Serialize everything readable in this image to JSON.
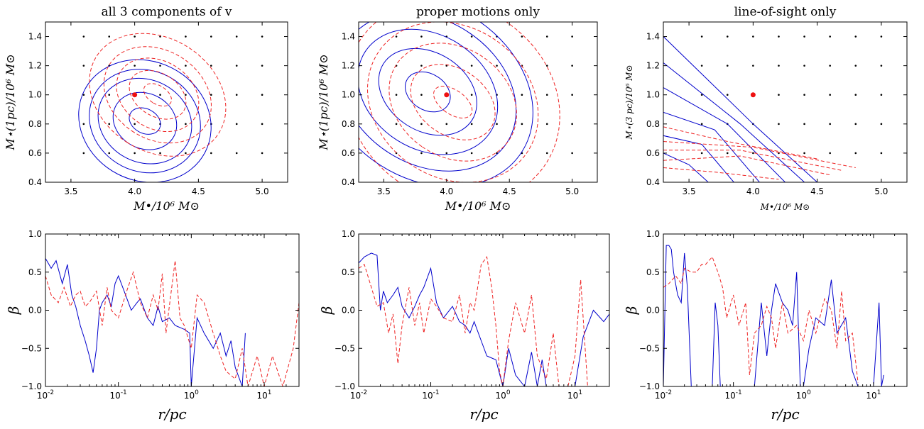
{
  "chart_data": [
    {
      "type": "contour",
      "title": "all 3 components of v",
      "xlabel": "M•/10⁶ M⊙",
      "ylabel": "M⋆(1pc)/10⁶ M⊙",
      "xlim": [
        3.3,
        5.2
      ],
      "ylim": [
        0.4,
        1.5
      ],
      "xticks": [
        "3.5",
        "4.0",
        "4.5",
        "5.0"
      ],
      "yticks": [
        "0.4",
        "0.6",
        "0.8",
        "1.0",
        "1.2",
        "1.4"
      ],
      "grid_points_x": [
        3.6,
        3.8,
        4.0,
        4.2,
        4.4,
        4.6,
        4.8,
        5.0
      ],
      "grid_points_y": [
        0.6,
        0.8,
        1.0,
        1.2,
        1.4
      ],
      "true_value": {
        "x": 4.0,
        "y": 1.0
      },
      "series": [
        {
          "style": "solid",
          "color": "#0000cc",
          "center": [
            4.08,
            0.82
          ],
          "radii": [
            [
              0.08,
              0.15
            ],
            [
              0.18,
              0.3
            ],
            [
              0.27,
              0.44
            ],
            [
              0.33,
              0.52
            ],
            [
              0.39,
              0.62
            ]
          ],
          "tilt": -0.45
        },
        {
          "style": "dashed",
          "color": "#ee2222",
          "center": [
            4.18,
            1.0
          ],
          "radii": [
            [
              0.06,
              0.14
            ],
            [
              0.14,
              0.28
            ],
            [
              0.22,
              0.4
            ],
            [
              0.29,
              0.52
            ],
            [
              0.37,
              0.66
            ]
          ],
          "tilt": -0.55
        }
      ]
    },
    {
      "type": "contour",
      "title": "proper motions only",
      "xlabel": "M•/10⁶ M⊙",
      "ylabel": "M⋆(1pc)/10⁶ M⊙",
      "xlim": [
        3.3,
        5.2
      ],
      "ylim": [
        0.4,
        1.5
      ],
      "xticks": [
        "3.5",
        "4.0",
        "4.5",
        "5.0"
      ],
      "yticks": [
        "0.4",
        "0.6",
        "0.8",
        "1.0",
        "1.2",
        "1.4"
      ],
      "grid_points_x": [
        3.6,
        3.8,
        4.0,
        4.2,
        4.4,
        4.6,
        4.8,
        5.0
      ],
      "grid_points_y": [
        0.6,
        0.8,
        1.0,
        1.2,
        1.4
      ],
      "true_value": {
        "x": 4.0,
        "y": 1.0
      },
      "series": [
        {
          "style": "solid",
          "color": "#0000cc",
          "center": [
            3.85,
            1.02
          ],
          "radii": [
            [
              0.12,
              0.22
            ],
            [
              0.26,
              0.48
            ],
            [
              0.38,
              0.68
            ],
            [
              0.48,
              0.86
            ],
            [
              0.58,
              1.02
            ]
          ],
          "tilt": -0.55
        },
        {
          "style": "dashed",
          "color": "#ee2222",
          "center": [
            4.05,
            0.95
          ],
          "radii": [
            [
              0.08,
              0.2
            ],
            [
              0.22,
              0.42
            ],
            [
              0.36,
              0.62
            ],
            [
              0.5,
              0.82
            ],
            [
              0.64,
              1.02
            ]
          ],
          "tilt": -0.6
        }
      ]
    },
    {
      "type": "contour",
      "title": "line-of-sight only",
      "xlabel": "M•/10⁶ M⊙",
      "ylabel": "M⋆(3 pc)/10⁶ M⊙",
      "xlim": [
        3.3,
        5.2
      ],
      "ylim": [
        0.4,
        1.5
      ],
      "xticks": [
        "3.5",
        "4.0",
        "4.5",
        "5.0"
      ],
      "yticks": [
        "0.4",
        "0.6",
        "0.8",
        "1.0",
        "1.2",
        "1.4"
      ],
      "grid_points_x": [
        3.6,
        3.8,
        4.0,
        4.2,
        4.4,
        4.6,
        4.8,
        5.0
      ],
      "grid_points_y": [
        0.6,
        0.8,
        1.0,
        1.2,
        1.4
      ],
      "true_value": {
        "x": 4.0,
        "y": 1.0
      },
      "series": [
        {
          "style": "solid",
          "color": "#0000cc",
          "lines": [
            [
              [
                3.3,
                1.4
              ],
              [
                4.0,
                0.8
              ],
              [
                4.5,
                0.4
              ]
            ],
            [
              [
                3.3,
                1.22
              ],
              [
                3.9,
                0.8
              ],
              [
                4.4,
                0.4
              ]
            ],
            [
              [
                3.3,
                1.05
              ],
              [
                3.8,
                0.8
              ],
              [
                4.25,
                0.4
              ]
            ],
            [
              [
                3.3,
                0.88
              ],
              [
                3.7,
                0.76
              ],
              [
                4.05,
                0.4
              ]
            ],
            [
              [
                3.3,
                0.72
              ],
              [
                3.6,
                0.66
              ],
              [
                3.85,
                0.4
              ]
            ],
            [
              [
                3.3,
                0.6
              ],
              [
                3.5,
                0.52
              ],
              [
                3.65,
                0.4
              ]
            ]
          ]
        },
        {
          "style": "dashed",
          "color": "#ee2222",
          "lines": [
            [
              [
                3.3,
                0.55
              ],
              [
                3.9,
                0.58
              ],
              [
                4.6,
                0.45
              ]
            ],
            [
              [
                3.3,
                0.62
              ],
              [
                3.9,
                0.62
              ],
              [
                4.7,
                0.48
              ]
            ],
            [
              [
                3.3,
                0.68
              ],
              [
                4.0,
                0.64
              ],
              [
                4.8,
                0.5
              ]
            ],
            [
              [
                3.3,
                0.78
              ],
              [
                3.8,
                0.68
              ],
              [
                4.5,
                0.56
              ]
            ],
            [
              [
                3.3,
                0.5
              ],
              [
                3.7,
                0.47
              ],
              [
                4.2,
                0.42
              ]
            ]
          ]
        }
      ]
    },
    {
      "type": "line",
      "xlabel": "r/pc",
      "ylabel": "β",
      "xscale": "log",
      "xlim": [
        0.01,
        30
      ],
      "ylim": [
        -1.0,
        1.0
      ],
      "yticks": [
        "−1.0",
        "−0.5",
        "0.0",
        "0.5",
        "1.0"
      ],
      "series": [
        {
          "style": "solid",
          "color": "#0000cc",
          "x": [
            0.01,
            0.012,
            0.014,
            0.017,
            0.02,
            0.023,
            0.026,
            0.03,
            0.035,
            0.04,
            0.045,
            0.05,
            0.055,
            0.06,
            0.07,
            0.08,
            0.09,
            0.1,
            0.12,
            0.15,
            0.18,
            0.2,
            0.25,
            0.3,
            0.35,
            0.4,
            0.5,
            0.6,
            0.8,
            0.95,
            1.0,
            1.2,
            1.5,
            2.0,
            2.5,
            3.0,
            3.5,
            4.0,
            5.0,
            5.5
          ],
          "y": [
            0.68,
            0.55,
            0.65,
            0.35,
            0.6,
            0.2,
            0.05,
            -0.2,
            -0.4,
            -0.6,
            -0.82,
            -0.5,
            0.0,
            0.1,
            0.2,
            0.05,
            0.35,
            0.45,
            0.25,
            0.0,
            0.1,
            0.15,
            -0.1,
            -0.2,
            0.05,
            -0.15,
            -0.1,
            -0.2,
            -0.25,
            -0.3,
            -1.0,
            -0.1,
            -0.3,
            -0.5,
            -0.3,
            -0.6,
            -0.4,
            -0.75,
            -1.0,
            -0.3
          ]
        },
        {
          "style": "dashed",
          "color": "#ee2222",
          "x": [
            0.01,
            0.012,
            0.015,
            0.018,
            0.022,
            0.026,
            0.03,
            0.035,
            0.04,
            0.05,
            0.06,
            0.07,
            0.08,
            0.1,
            0.13,
            0.16,
            0.2,
            0.25,
            0.3,
            0.35,
            0.4,
            0.45,
            0.5,
            0.6,
            0.7,
            0.8,
            1.0,
            1.2,
            1.5,
            2.0,
            2.5,
            3.0,
            4.0,
            5.0,
            6.0,
            8.0,
            10.0,
            13.0,
            18.0,
            25.0,
            30.0
          ],
          "y": [
            0.45,
            0.2,
            0.1,
            0.3,
            0.05,
            0.2,
            0.25,
            0.05,
            0.1,
            0.25,
            -0.2,
            0.3,
            0.0,
            -0.1,
            0.25,
            0.5,
            0.1,
            -0.1,
            0.2,
            0.0,
            0.48,
            -0.3,
            0.05,
            0.65,
            -0.1,
            -0.2,
            -0.5,
            0.2,
            0.1,
            -0.3,
            -0.6,
            -0.8,
            -0.9,
            -0.5,
            -1.0,
            -0.6,
            -1.0,
            -0.6,
            -1.0,
            -0.5,
            0.1
          ]
        }
      ]
    },
    {
      "type": "line",
      "xlabel": "r/pc",
      "ylabel": "β",
      "xscale": "log",
      "xlim": [
        0.01,
        30
      ],
      "ylim": [
        -1.0,
        1.0
      ],
      "yticks": [
        "−1.0",
        "−0.5",
        "0.0",
        "0.5",
        "1.0"
      ],
      "series": [
        {
          "style": "solid",
          "color": "#0000cc",
          "x": [
            0.01,
            0.012,
            0.015,
            0.018,
            0.02,
            0.022,
            0.025,
            0.03,
            0.035,
            0.04,
            0.05,
            0.06,
            0.07,
            0.08,
            0.1,
            0.12,
            0.15,
            0.2,
            0.25,
            0.3,
            0.35,
            0.4,
            0.5,
            0.6,
            0.8,
            1.0,
            1.2,
            1.5,
            2.0,
            2.5,
            3.0,
            3.5,
            4.0,
            5.0,
            6.0,
            8.0,
            10.0,
            13.0,
            18.0,
            25.0,
            30.0
          ],
          "y": [
            0.62,
            0.7,
            0.75,
            0.72,
            0.0,
            0.25,
            0.1,
            0.2,
            0.3,
            0.05,
            -0.1,
            0.05,
            0.2,
            0.3,
            0.55,
            0.1,
            -0.1,
            0.05,
            -0.15,
            -0.2,
            -0.3,
            -0.15,
            -0.4,
            -0.6,
            -0.65,
            -1.0,
            -0.5,
            -0.85,
            -1.0,
            -0.55,
            -1.0,
            -0.65,
            -1.0,
            -1.0,
            -1.0,
            -1.0,
            -1.0,
            -0.35,
            0.0,
            -0.15,
            -0.05
          ]
        },
        {
          "style": "dashed",
          "color": "#ee2222",
          "x": [
            0.01,
            0.012,
            0.015,
            0.018,
            0.022,
            0.026,
            0.03,
            0.035,
            0.04,
            0.05,
            0.06,
            0.07,
            0.08,
            0.1,
            0.12,
            0.15,
            0.2,
            0.25,
            0.3,
            0.35,
            0.4,
            0.5,
            0.6,
            0.7,
            0.8,
            0.9,
            1.0,
            1.2,
            1.5,
            2.0,
            2.5,
            3.0,
            4.0,
            5.0,
            6.0,
            8.0,
            10.0,
            12.0,
            15.0
          ],
          "y": [
            0.55,
            0.6,
            0.3,
            0.05,
            0.1,
            -0.3,
            -0.05,
            -0.7,
            -0.2,
            0.3,
            -0.2,
            0.1,
            -0.3,
            0.15,
            0.05,
            -0.1,
            -0.15,
            0.2,
            -0.3,
            0.1,
            0.0,
            0.6,
            0.7,
            0.3,
            -0.2,
            -0.8,
            -1.0,
            -0.4,
            0.1,
            -0.3,
            0.2,
            -0.6,
            -0.9,
            -0.3,
            -1.0,
            -1.0,
            -0.6,
            0.4,
            -1.0
          ]
        }
      ]
    },
    {
      "type": "line",
      "xlabel": "r/pc",
      "ylabel": "β",
      "xscale": "log",
      "xlim": [
        0.01,
        30
      ],
      "ylim": [
        -1.0,
        1.0
      ],
      "yticks": [
        "−1.0",
        "−0.5",
        "0.0",
        "0.5",
        "1.0"
      ],
      "series": [
        {
          "style": "solid",
          "color": "#0000cc",
          "x": [
            0.01,
            0.011,
            0.012,
            0.013,
            0.014,
            0.016,
            0.018,
            0.02,
            0.022,
            0.025,
            0.03,
            0.04,
            0.05,
            0.055,
            0.06,
            0.065,
            0.07,
            0.1,
            0.15,
            0.2,
            0.25,
            0.3,
            0.35,
            0.4,
            0.5,
            0.6,
            0.7,
            0.8,
            0.9,
            1.0,
            1.2,
            1.5,
            2.0,
            2.5,
            3.0,
            4.0,
            5.0,
            6.0,
            8.0,
            10.0,
            12.0,
            13.0,
            14.0
          ],
          "y": [
            -1.0,
            0.85,
            0.85,
            0.8,
            0.5,
            0.2,
            0.1,
            0.75,
            0.3,
            -1.0,
            -1.0,
            -1.0,
            -1.0,
            0.1,
            -0.2,
            -1.0,
            -1.0,
            -1.0,
            -1.0,
            -1.0,
            0.1,
            -0.6,
            0.0,
            0.35,
            0.1,
            0.0,
            -0.2,
            0.5,
            -1.0,
            -1.0,
            -0.5,
            -0.1,
            -0.2,
            0.4,
            -0.3,
            -0.1,
            -0.8,
            -1.0,
            -1.0,
            -1.0,
            0.1,
            -1.0,
            -0.85
          ]
        },
        {
          "style": "dashed",
          "color": "#ee2222",
          "x": [
            0.01,
            0.012,
            0.015,
            0.018,
            0.02,
            0.025,
            0.03,
            0.035,
            0.04,
            0.05,
            0.06,
            0.07,
            0.08,
            0.1,
            0.12,
            0.15,
            0.17,
            0.2,
            0.25,
            0.3,
            0.35,
            0.4,
            0.5,
            0.6,
            0.8,
            1.0,
            1.2,
            1.5,
            2.0,
            2.5,
            3.0,
            3.5,
            4.0,
            5.0,
            6.0
          ],
          "y": [
            0.3,
            0.35,
            0.45,
            0.35,
            0.55,
            0.5,
            0.5,
            0.6,
            0.6,
            0.7,
            0.5,
            0.3,
            -0.1,
            0.2,
            -0.2,
            0.1,
            -0.85,
            -0.3,
            -0.2,
            0.05,
            -0.1,
            -0.5,
            0.1,
            -0.3,
            -0.2,
            -0.4,
            0.0,
            -0.3,
            0.15,
            0.0,
            -0.5,
            0.25,
            -0.4,
            -0.3,
            -0.95
          ]
        }
      ]
    }
  ]
}
